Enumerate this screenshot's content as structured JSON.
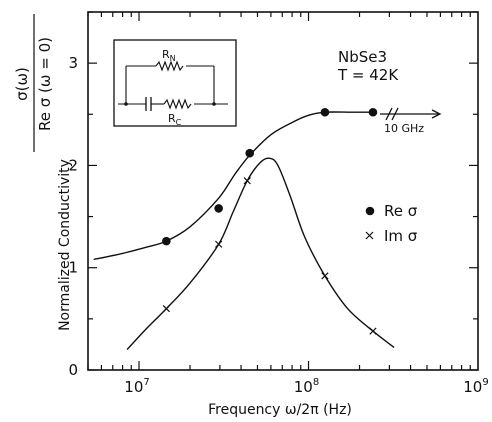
{
  "chart_data": {
    "type": "line",
    "title": "",
    "xlabel": "Frequency  ω/2π  (Hz)",
    "ylabel": "Normalized Conductivity",
    "ylabel_ratio": {
      "numerator": "σ(ω)",
      "denominator": "Re σ (ω = 0)"
    },
    "xscale": "log",
    "xlim": [
      5000000,
      1000000000
    ],
    "ylim": [
      0,
      3.5
    ],
    "x_ticks": [
      {
        "value": 10000000,
        "base": "10",
        "exp": "7"
      },
      {
        "value": 100000000,
        "base": "10",
        "exp": "8"
      },
      {
        "value": 1000000000,
        "base": "10",
        "exp": "9"
      }
    ],
    "y_ticks": [
      {
        "value": 0,
        "label": "0"
      },
      {
        "value": 1,
        "label": "1"
      },
      {
        "value": 2,
        "label": "2"
      },
      {
        "value": 3,
        "label": "3"
      }
    ],
    "series": [
      {
        "name": "Re σ",
        "marker": "filled-circle",
        "points": [
          {
            "x": 14500000,
            "y": 1.26
          },
          {
            "x": 29500000,
            "y": 1.58
          },
          {
            "x": 45000000,
            "y": 2.12
          },
          {
            "x": 125000000,
            "y": 2.52
          },
          {
            "x": 240000000,
            "y": 2.52
          }
        ],
        "curve": [
          [
            5400000,
            1.08
          ],
          [
            8000000,
            1.14
          ],
          [
            11000000,
            1.2
          ],
          [
            14500000,
            1.26
          ],
          [
            20000000,
            1.4
          ],
          [
            29500000,
            1.68
          ],
          [
            37000000,
            1.92
          ],
          [
            45000000,
            2.1
          ],
          [
            60000000,
            2.3
          ],
          [
            80000000,
            2.42
          ],
          [
            100000000,
            2.49
          ],
          [
            125000000,
            2.52
          ],
          [
            180000000,
            2.52
          ],
          [
            230000000,
            2.52
          ]
        ],
        "extension_label": "10 GHz"
      },
      {
        "name": "Im σ",
        "marker": "x",
        "points": [
          {
            "x": 14500000,
            "y": 0.6
          },
          {
            "x": 29500000,
            "y": 1.23
          },
          {
            "x": 43500000,
            "y": 1.85
          },
          {
            "x": 125000000,
            "y": 0.92
          },
          {
            "x": 240000000,
            "y": 0.38
          }
        ],
        "curve": [
          [
            8500000,
            0.2
          ],
          [
            11000000,
            0.4
          ],
          [
            14500000,
            0.6
          ],
          [
            20000000,
            0.85
          ],
          [
            29500000,
            1.23
          ],
          [
            36000000,
            1.55
          ],
          [
            43500000,
            1.85
          ],
          [
            52000000,
            2.03
          ],
          [
            59000000,
            2.07
          ],
          [
            66000000,
            2.0
          ],
          [
            78000000,
            1.7
          ],
          [
            95000000,
            1.3
          ],
          [
            125000000,
            0.92
          ],
          [
            170000000,
            0.6
          ],
          [
            240000000,
            0.38
          ],
          [
            320000000,
            0.22
          ]
        ]
      }
    ],
    "annotations": {
      "material": "NbSe3",
      "temperature": "T = 42K",
      "legend": [
        {
          "symbol": "filled-circle",
          "label": "Re σ"
        },
        {
          "symbol": "x",
          "label": "Im σ"
        }
      ],
      "circuit": {
        "r_parallel": "R",
        "r_parallel_sub": "N",
        "r_series": "R",
        "r_series_sub": "C"
      }
    }
  }
}
